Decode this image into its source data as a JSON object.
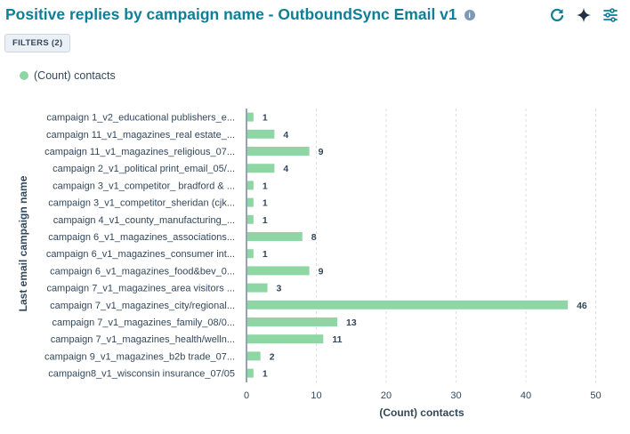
{
  "header": {
    "title": "Positive replies by campaign name - OutboundSync Email v1",
    "info_icon": "info-icon",
    "tools": [
      "refresh-icon",
      "sparkle-icon",
      "sliders-icon"
    ]
  },
  "filters": {
    "label": "FILTERS (2)"
  },
  "colors": {
    "bar": "#8fd6a5",
    "title": "#0e7f97",
    "grid": "#d9dee4",
    "axis": "#33475b"
  },
  "chart_data": {
    "type": "bar",
    "orientation": "horizontal",
    "title": "Positive replies by campaign name - OutboundSync Email v1",
    "xlabel": "(Count) contacts",
    "ylabel": "Last email campaign name",
    "xlim": [
      0,
      52
    ],
    "xticks": [
      0,
      10,
      20,
      30,
      40,
      50
    ],
    "grid": true,
    "legend_position": "top-left",
    "categories": [
      "campaign 1_v2_educational publishers_e...",
      "campaign 11_v1_magazines_real estate_...",
      "campaign 11_v1_magazines_religious_07...",
      "campaign 2_v1_political print_email_05/...",
      "campaign 3_v1_competitor_ bradford & ...",
      "campaign 3_v1_competitor_sheridan (cjk...",
      "campaign 4_v1_county_manufacturing_...",
      "campaign 6_v1_magazines_associations...",
      "campaign 6_v1_magazines_consumer int...",
      "campaign 6_v1_magazines_food&bev_0...",
      "campaign 7_v1_magazines_area visitors ...",
      "campaign 7_v1_magazines_city/regional...",
      "campaign 7_v1_magazines_family_08/0...",
      "campaign 7_v1_magazines_health/welln...",
      "campaign 9_v1_magazines_b2b trade_07...",
      "campaign8_v1_wisconsin insurance_07/05"
    ],
    "series": [
      {
        "name": "(Count) contacts",
        "values": [
          1,
          4,
          9,
          4,
          1,
          1,
          1,
          8,
          1,
          9,
          3,
          46,
          13,
          11,
          2,
          1
        ]
      }
    ]
  }
}
